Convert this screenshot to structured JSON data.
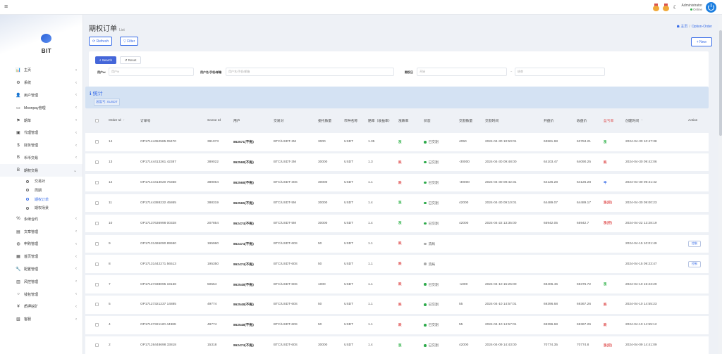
{
  "topbar": {
    "menu_icon": "menu-icon",
    "user_name": "Administrator",
    "user_status": "Online",
    "icons": [
      "medal-icon",
      "medal-icon",
      "moon-icon",
      "power-icon"
    ]
  },
  "sidebar": {
    "brand": "BIT",
    "items": [
      {
        "icon": "bar-chart-icon",
        "glyph": "📊",
        "label": "主页"
      },
      {
        "icon": "gear-icon",
        "glyph": "⚙",
        "label": "系统"
      },
      {
        "icon": "user-icon",
        "glyph": "👤",
        "label": "用户管理"
      },
      {
        "icon": "card-icon",
        "glyph": "▭",
        "label": "Moonpay管理"
      },
      {
        "icon": "flag-icon",
        "glyph": "⚑",
        "label": "期单"
      },
      {
        "icon": "id-card-icon",
        "glyph": "▣",
        "label": "代理管理"
      },
      {
        "icon": "dollar-icon",
        "glyph": "$",
        "label": "财务管理"
      },
      {
        "icon": "bitcoin-icon",
        "glyph": "B",
        "label": "币币交易"
      },
      {
        "icon": "bitcoin-icon",
        "glyph": "B",
        "label": "期权交易"
      }
    ],
    "sub_items": [
      "交易对",
      "周期",
      "期权订单",
      "期权场景"
    ],
    "items_after": [
      {
        "icon": "percent-icon",
        "glyph": "%",
        "label": "永续合约"
      },
      {
        "icon": "doc-icon",
        "glyph": "▤",
        "label": "文章管理"
      },
      {
        "icon": "globe-icon",
        "glyph": "◍",
        "label": "申购管理"
      },
      {
        "icon": "table-icon",
        "glyph": "▦",
        "label": "首页管理"
      },
      {
        "icon": "wrench-icon",
        "glyph": "🔧",
        "label": "配置管理"
      },
      {
        "icon": "shield-icon",
        "glyph": "▥",
        "label": "风控管理"
      },
      {
        "icon": "circle-icon",
        "glyph": "○",
        "label": "钱包管理"
      },
      {
        "icon": "yen-icon",
        "glyph": "¥",
        "label": "质押挖矿"
      },
      {
        "icon": "chart-icon",
        "glyph": "▧",
        "label": "客服"
      }
    ]
  },
  "page": {
    "title": "期权订单",
    "subtitle": "List",
    "breadcrumb_home": "主页",
    "breadcrumb_current": "Option-Order",
    "refresh_label": "Refresh",
    "filter_label": "Filter",
    "new_label": "+ New"
  },
  "search": {
    "search_label": "Search",
    "reset_label": "Reset",
    "user_id_label": "用户id",
    "user_id_placeholder": "用户id",
    "user_name_label": "用户名/手机/邮箱",
    "user_name_placeholder": "用户名/手机/邮箱",
    "time_label": "期权日",
    "time_start_placeholder": "开始",
    "time_end_placeholder": "结束"
  },
  "stats": {
    "title": "统计",
    "summary": "总盈亏: 0USDT"
  },
  "table": {
    "headers": [
      "Order Id",
      "订单号",
      "Scene Id",
      "用户",
      "交易对",
      "委托数量",
      "币种名称",
      "赔率（收益率）",
      "涨跌率",
      "状态",
      "交割数量",
      "交割时间",
      "开盘价",
      "收盘价",
      "盈亏率",
      "创建时间",
      "Action"
    ],
    "sort_arrow": "↑",
    "rows": [
      {
        "id": "14",
        "order_no": "OP17144452585 09470",
        "scene": "391073",
        "user": "862571(不拖)",
        "pair": "BTC/USDT-2M",
        "amount": "3000",
        "coin": "USDT",
        "odds": "1.35",
        "rate": "涨",
        "rate_type": "win",
        "status": "已交割",
        "status_type": "green",
        "settle_amount": "4050",
        "settle_time": "2024-04-30 10:50:01",
        "open": "63861.98",
        "close": "63784.21",
        "pl": "涨",
        "pl_type": "win",
        "created": "2024-04-30 10:47:38",
        "action": ""
      },
      {
        "id": "13",
        "order_no": "OP17144413261 42387",
        "scene": "389022",
        "user": "862568(不拖)",
        "pair": "BTC/USDT-3M",
        "amount": "30000",
        "coin": "USDT",
        "odds": "1.3",
        "rate": "跌",
        "rate_type": "lose",
        "status": "已交割",
        "status_type": "green",
        "settle_amount": "-30000",
        "settle_time": "2024-04-30 09:48:00",
        "open": "64103.47",
        "close": "64090.25",
        "pl": "跌",
        "pl_type": "lose",
        "created": "2024-04-30 09:42:06",
        "action": ""
      },
      {
        "id": "12",
        "order_no": "OP17144413020 76358",
        "scene": "389064",
        "user": "862568(不拖)",
        "pair": "BTC/USDT-30S",
        "amount": "30000",
        "coin": "USDT",
        "odds": "1.1",
        "rate": "跌",
        "rate_type": "lose",
        "status": "已交割",
        "status_type": "green",
        "settle_amount": "-30000",
        "settle_time": "2024-04-30 09:42:31",
        "open": "64126.28",
        "close": "64126.28",
        "pl": "平",
        "pl_type": "flat",
        "created": "2024-04-30 09:41:42",
        "action": ""
      },
      {
        "id": "11",
        "order_no": "OP17144388232 45865",
        "scene": "388319",
        "user": "862565(不拖)",
        "pair": "BTC/USDT-5M",
        "amount": "30000",
        "coin": "USDT",
        "odds": "1.4",
        "rate": "涨",
        "rate_type": "win",
        "status": "已交割",
        "status_type": "green",
        "settle_amount": "42000",
        "settle_time": "2024-04-30 09:10:01",
        "open": "64489.07",
        "close": "64489.17",
        "pl": "涨(控)",
        "pl_type": "lose",
        "created": "2024-04-30 09:00:23",
        "action": ""
      },
      {
        "id": "10",
        "order_no": "OP17137636998 00328",
        "scene": "207854",
        "user": "862474(不拖)",
        "pair": "BTC/USDT-5M",
        "amount": "30000",
        "coin": "USDT",
        "odds": "1.4",
        "rate": "涨",
        "rate_type": "win",
        "status": "已交割",
        "status_type": "green",
        "settle_amount": "42000",
        "settle_time": "2024-04-22 13:35:00",
        "open": "65942.05",
        "close": "65942.7",
        "pl": "涨(控)",
        "pl_type": "lose",
        "created": "2024-04-22 13:28:19",
        "action": ""
      },
      {
        "id": "9",
        "order_no": "OP17131465090 89590",
        "scene": "195960",
        "user": "862474(不拖)",
        "pair": "BTC/USDT-60S",
        "amount": "50",
        "coin": "USDT",
        "odds": "1.1",
        "rate": "跌",
        "rate_type": "lose",
        "status": "流局",
        "status_type": "grey",
        "settle_amount": "",
        "settle_time": "",
        "open": "",
        "close": "",
        "pl": "",
        "pl_type": "",
        "created": "2024-04-15 10:01:49",
        "action": "控制"
      },
      {
        "id": "8",
        "order_no": "OP17131442271 56513",
        "scene": "195350",
        "user": "862474(不拖)",
        "pair": "BTC/USDT-60S",
        "amount": "50",
        "coin": "USDT",
        "odds": "1.1",
        "rate": "跌",
        "rate_type": "lose",
        "status": "流局",
        "status_type": "grey",
        "settle_amount": "",
        "settle_time": "",
        "open": "",
        "close": "",
        "pl": "",
        "pl_type": "",
        "created": "2024-04-15 09:23:47",
        "action": "控制"
      },
      {
        "id": "7",
        "order_no": "OP17127338095 19158",
        "scene": "50554",
        "user": "862548(不拖)",
        "pair": "BTC/USDT-60S",
        "amount": "1000",
        "coin": "USDT",
        "odds": "1.1",
        "rate": "跌",
        "rate_type": "lose",
        "status": "已交割",
        "status_type": "green",
        "settle_amount": "-1000",
        "settle_time": "2024-04-10 15:25:00",
        "open": "69406.46",
        "close": "69376.72",
        "pl": "涨",
        "pl_type": "win",
        "created": "2024-04-10 15:23:29",
        "action": ""
      },
      {
        "id": "5",
        "order_no": "OP17127321237 14885",
        "scene": "49774",
        "user": "862548(不拖)",
        "pair": "BTC/USDT-60S",
        "amount": "50",
        "coin": "USDT",
        "odds": "1.1",
        "rate": "跌",
        "rate_type": "lose",
        "status": "已交割",
        "status_type": "green",
        "settle_amount": "55",
        "settle_time": "2024-04-10 14:57:01",
        "open": "69396.68",
        "close": "69367.26",
        "pl": "跌",
        "pl_type": "lose",
        "created": "2024-04-10 14:55:23",
        "action": ""
      },
      {
        "id": "4",
        "order_no": "OP17127321120 44989",
        "scene": "49774",
        "user": "862548(不拖)",
        "pair": "BTC/USDT-60S",
        "amount": "50",
        "coin": "USDT",
        "odds": "1.1",
        "rate": "跌",
        "rate_type": "lose",
        "status": "已交割",
        "status_type": "green",
        "settle_amount": "55",
        "settle_time": "2024-04-10 14:57:01",
        "open": "69396.68",
        "close": "69367.26",
        "pl": "跌",
        "pl_type": "lose",
        "created": "2024-04-10 14:55:12",
        "action": ""
      },
      {
        "id": "2",
        "order_no": "OP17126448698 33818",
        "scene": "15318",
        "user": "862474(不拖)",
        "pair": "BTC/USDT-60S",
        "amount": "30000",
        "coin": "USDT",
        "odds": "1.4",
        "rate": "涨",
        "rate_type": "win",
        "status": "已交割",
        "status_type": "green",
        "settle_amount": "42000",
        "settle_time": "2024-04-09 14:43:00",
        "open": "70774.35",
        "close": "70774.8",
        "pl": "涨(控)",
        "pl_type": "lose",
        "created": "2024-04-09 14:41:09",
        "action": ""
      }
    ]
  }
}
